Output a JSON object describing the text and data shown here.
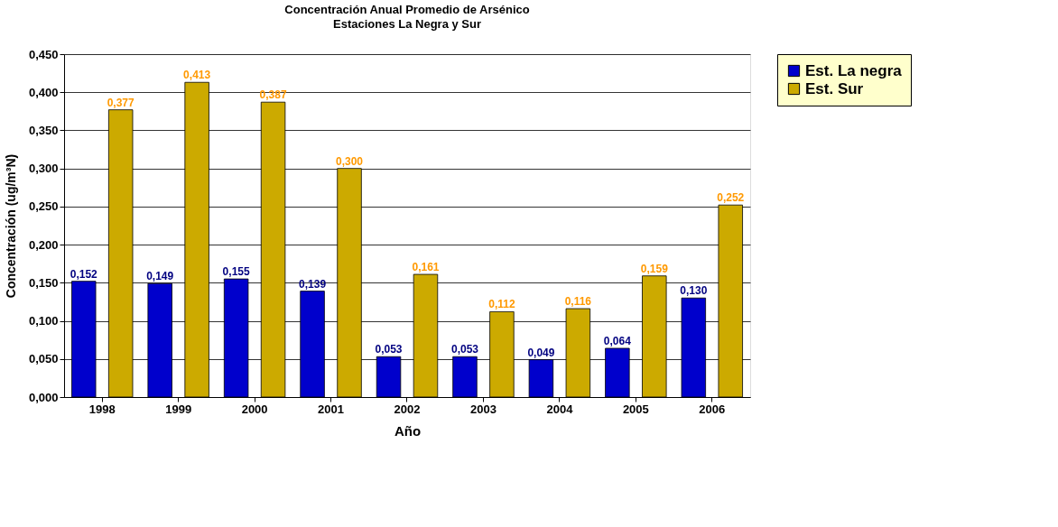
{
  "chart_data": {
    "type": "bar",
    "title": "Concentración Anual Promedio de Arsénico",
    "subtitle": "Estaciones La Negra y Sur",
    "xlabel": "Año",
    "ylabel": "Concentración (ug/m³N)",
    "categories": [
      "1998",
      "1999",
      "2000",
      "2001",
      "2002",
      "2003",
      "2004",
      "2005",
      "2006"
    ],
    "series": [
      {
        "name": "Est. La negra",
        "color": "#0000cc",
        "values": [
          0.152,
          0.149,
          0.155,
          0.139,
          0.053,
          0.053,
          0.049,
          0.064,
          0.13
        ],
        "value_labels": [
          "0,152",
          "0,149",
          "0,155",
          "0,139",
          "0,053",
          "0,053",
          "0,049",
          "0,064",
          "0,130"
        ]
      },
      {
        "name": "Est. Sur",
        "color": "#ccaa00",
        "values": [
          0.377,
          0.413,
          0.387,
          0.3,
          0.161,
          0.112,
          0.116,
          0.159,
          0.252
        ],
        "value_labels": [
          "0,377",
          "0,413",
          "0,387",
          "0,300",
          "0,161",
          "0,112",
          "0,116",
          "0,159",
          "0,252"
        ]
      }
    ],
    "ylim": [
      0,
      0.45
    ],
    "yticks": [
      {
        "value": 0,
        "label": "0,000"
      },
      {
        "value": 0.05,
        "label": "0,050"
      },
      {
        "value": 0.1,
        "label": "0,100"
      },
      {
        "value": 0.15,
        "label": "0,150"
      },
      {
        "value": 0.2,
        "label": "0,200"
      },
      {
        "value": 0.25,
        "label": "0,250"
      },
      {
        "value": 0.3,
        "label": "0,300"
      },
      {
        "value": 0.35,
        "label": "0,350"
      },
      {
        "value": 0.4,
        "label": "0,400"
      },
      {
        "value": 0.45,
        "label": "0,450"
      }
    ],
    "grid": "y",
    "legend": "right"
  }
}
